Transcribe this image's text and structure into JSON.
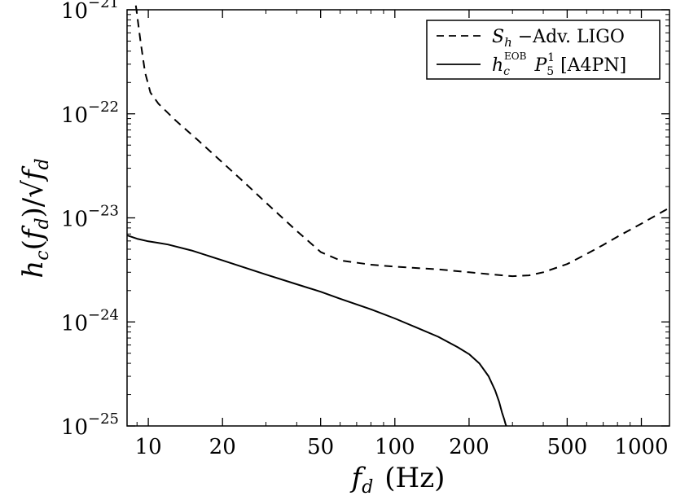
{
  "chart_data": {
    "type": "line",
    "xlabel": "f_d (Hz)",
    "ylabel": "h_c(f_d)/√f_d",
    "xscale": "log",
    "yscale": "log",
    "xlim": [
      8.2,
      1300
    ],
    "ylim": [
      1e-25,
      1e-21
    ],
    "grid": false,
    "legend_position": "top-right",
    "x_ticks": [
      {
        "value": 10,
        "label": "10"
      },
      {
        "value": 20,
        "label": "20"
      },
      {
        "value": 50,
        "label": "50"
      },
      {
        "value": 100,
        "label": "100"
      },
      {
        "value": 200,
        "label": "200"
      },
      {
        "value": 500,
        "label": "500"
      },
      {
        "value": 1000,
        "label": "1000"
      }
    ],
    "y_ticks": [
      {
        "value": 1e-21,
        "base": "10",
        "exp": "−21"
      },
      {
        "value": 1e-22,
        "base": "10",
        "exp": "−22"
      },
      {
        "value": 1e-23,
        "base": "10",
        "exp": "−23"
      },
      {
        "value": 1e-24,
        "base": "10",
        "exp": "−24"
      },
      {
        "value": 1e-25,
        "base": "10",
        "exp": "−25"
      }
    ],
    "series": [
      {
        "name": "S_h −Adv. LIGO",
        "style": "dashed",
        "color": "#000000",
        "x": [
          8.9,
          9.3,
          9.7,
          10.2,
          11,
          13,
          16,
          20,
          25,
          30,
          40,
          50,
          60,
          80,
          100,
          150,
          200,
          250,
          300,
          350,
          400,
          500,
          600,
          700,
          800,
          1000,
          1300
        ],
        "y": [
          1.1e-21,
          5e-22,
          2.5e-22,
          1.6e-22,
          1.25e-22,
          8.5e-23,
          5.5e-23,
          3.4e-23,
          2.1e-23,
          1.4e-23,
          7.5e-24,
          4.7e-24,
          3.9e-24,
          3.55e-24,
          3.4e-24,
          3.2e-24,
          3e-24,
          2.85e-24,
          2.75e-24,
          2.8e-24,
          3e-24,
          3.6e-24,
          4.5e-24,
          5.5e-24,
          6.6e-24,
          8.8e-24,
          1.25e-23
        ]
      },
      {
        "name": "h_c^EOB P_5^1 [A4PN]",
        "style": "solid",
        "color": "#000000",
        "x": [
          8.2,
          9,
          10,
          11,
          12,
          15,
          20,
          30,
          40,
          50,
          60,
          80,
          100,
          120,
          150,
          180,
          200,
          220,
          240,
          255,
          265,
          272,
          278,
          281,
          283
        ],
        "y": [
          6.8e-24,
          6.3e-24,
          5.95e-24,
          5.75e-24,
          5.55e-24,
          4.85e-24,
          3.9e-24,
          2.85e-24,
          2.3e-24,
          1.95e-24,
          1.67e-24,
          1.32e-24,
          1.08e-24,
          9e-25,
          7.2e-25,
          5.7e-25,
          4.9e-25,
          4e-25,
          3e-25,
          2.2e-25,
          1.7e-25,
          1.35e-25,
          1.15e-25,
          1.05e-25,
          1e-25
        ]
      }
    ],
    "legend": {
      "entry1": {
        "main": "S",
        "sub": "h",
        "rest": " −Adv. LIGO"
      },
      "entry2": {
        "main": "h",
        "sub": "c",
        "sup": "EOB",
        "p": "P",
        "psub": "5",
        "psup": "1",
        "rest": " [A4PN]"
      }
    },
    "axis_titles": {
      "x_var": "f",
      "x_sub": "d",
      "x_unit": "(Hz)",
      "y_h": "h",
      "y_h_sub": "c",
      "y_open": "(",
      "y_f": "f",
      "y_f_sub": "d",
      "y_close": ")/√",
      "y_den": "f",
      "y_den_sub": "d"
    }
  }
}
